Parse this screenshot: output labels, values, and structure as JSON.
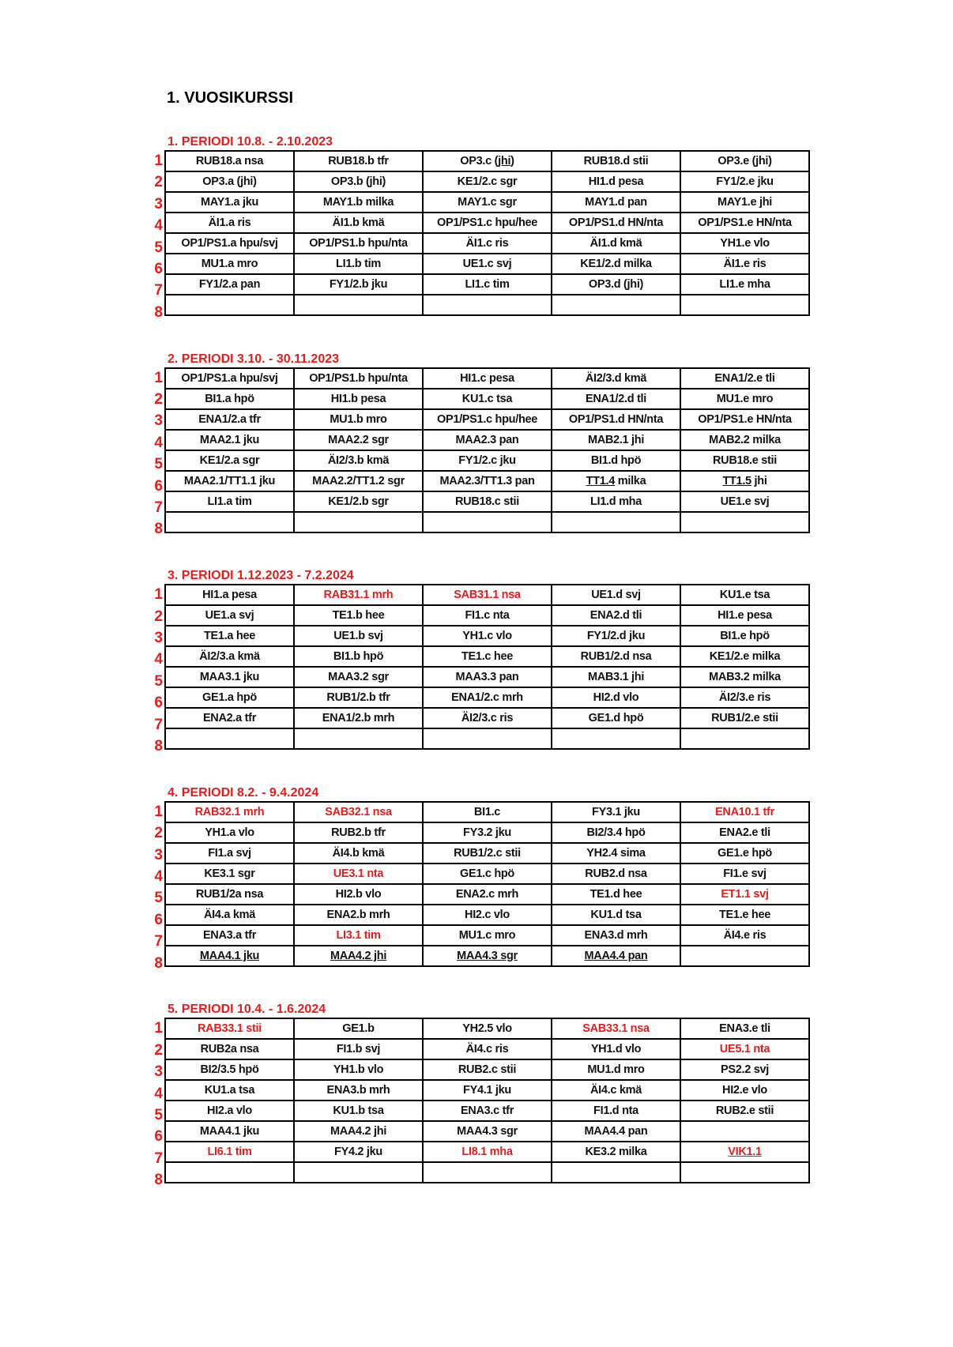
{
  "title": "1. VUOSIKURSSI",
  "accent_color": "#e31c1c",
  "row_numbers": [
    "1",
    "2",
    "3",
    "4",
    "5",
    "6",
    "7",
    "8"
  ],
  "periods": [
    {
      "heading": "1. PERIODI 10.8. - 2.10.2023",
      "rows": [
        [
          "RUB18.a nsa",
          "RUB18.b tfr",
          {
            "text": "OP3.c (jhi)",
            "underline": "jhi"
          },
          "RUB18.d stii",
          "OP3.e (jhi)"
        ],
        [
          "OP3.a (jhi)",
          "OP3.b (jhi)",
          "KE1/2.c sgr",
          "HI1.d pesa",
          "FY1/2.e jku"
        ],
        [
          "MAY1.a jku",
          "MAY1.b milka",
          "MAY1.c sgr",
          "MAY1.d pan",
          "MAY1.e jhi"
        ],
        [
          "ÄI1.a ris",
          "ÄI1.b kmä",
          "OP1/PS1.c hpu/hee",
          "OP1/PS1.d HN/nta",
          "OP1/PS1.e HN/nta"
        ],
        [
          "OP1/PS1.a hpu/svj",
          "OP1/PS1.b hpu/nta",
          "ÄI1.c ris",
          "ÄI1.d kmä",
          "YH1.e vlo"
        ],
        [
          "MU1.a mro",
          "LI1.b tim",
          "UE1.c svj",
          "KE1/2.d milka",
          "ÄI1.e ris"
        ],
        [
          "FY1/2.a pan",
          "FY1/2.b jku",
          "LI1.c tim",
          "OP3.d (jhi)",
          "LI1.e mha"
        ],
        [
          "",
          "",
          "",
          "",
          ""
        ]
      ]
    },
    {
      "heading": "2. PERIODI 3.10. - 30.11.2023",
      "rows": [
        [
          "OP1/PS1.a hpu/svj",
          "OP1/PS1.b hpu/nta",
          "HI1.c pesa",
          "ÄI2/3.d kmä",
          "ENA1/2.e tli"
        ],
        [
          "BI1.a hpö",
          "HI1.b pesa",
          "KU1.c tsa",
          "ENA1/2.d tli",
          "MU1.e mro"
        ],
        [
          "ENA1/2.a tfr",
          "MU1.b mro",
          "OP1/PS1.c hpu/hee",
          "OP1/PS1.d HN/nta",
          "OP1/PS1.e HN/nta"
        ],
        [
          "MAA2.1 jku",
          "MAA2.2 sgr",
          "MAA2.3 pan",
          "MAB2.1 jhi",
          "MAB2.2 milka"
        ],
        [
          "KE1/2.a sgr",
          "ÄI2/3.b kmä",
          "FY1/2.c jku",
          "BI1.d hpö",
          "RUB18.e stii"
        ],
        [
          "MAA2.1/TT1.1 jku",
          "MAA2.2/TT1.2 sgr",
          "MAA2.3/TT1.3 pan",
          {
            "text": "TT1.4 milka",
            "underline": "TT1.4"
          },
          {
            "text": "TT1.5 jhi",
            "underline": "TT1.5"
          }
        ],
        [
          "LI1.a tim",
          "KE1/2.b sgr",
          "RUB18.c stii",
          "LI1.d mha",
          "UE1.e svj"
        ],
        [
          "",
          "",
          "",
          "",
          ""
        ]
      ]
    },
    {
      "heading": "3. PERIODI 1.12.2023 - 7.2.2024",
      "rows": [
        [
          "HI1.a pesa",
          {
            "text": "RAB31.1 mrh",
            "red": true
          },
          {
            "text": "SAB31.1 nsa",
            "red": true
          },
          "UE1.d svj",
          "KU1.e tsa"
        ],
        [
          "UE1.a svj",
          "TE1.b hee",
          "FI1.c nta",
          "ENA2.d tli",
          "HI1.e pesa"
        ],
        [
          "TE1.a hee",
          "UE1.b svj",
          "YH1.c vlo",
          "FY1/2.d jku",
          "BI1.e hpö"
        ],
        [
          "ÄI2/3.a kmä",
          "BI1.b hpö",
          "TE1.c hee",
          "RUB1/2.d nsa",
          "KE1/2.e milka"
        ],
        [
          "MAA3.1 jku",
          "MAA3.2 sgr",
          "MAA3.3 pan",
          "MAB3.1 jhi",
          "MAB3.2 milka"
        ],
        [
          "GE1.a hpö",
          "RUB1/2.b tfr",
          "ENA1/2.c mrh",
          "HI2.d vlo",
          "ÄI2/3.e ris"
        ],
        [
          "ENA2.a tfr",
          "ENA1/2.b mrh",
          "ÄI2/3.c ris",
          "GE1.d hpö",
          "RUB1/2.e stii"
        ],
        [
          "",
          "",
          "",
          "",
          ""
        ]
      ]
    },
    {
      "heading": "4. PERIODI 8.2. - 9.4.2024",
      "rows": [
        [
          {
            "text": "RAB32.1 mrh",
            "red": true
          },
          {
            "text": "SAB32.1 nsa",
            "red": true
          },
          "BI1.c",
          "FY3.1 jku",
          {
            "text": "ENA10.1 tfr",
            "red": true
          }
        ],
        [
          "YH1.a vlo",
          "RUB2.b tfr",
          "FY3.2 jku",
          "BI2/3.4 hpö",
          "ENA2.e tli"
        ],
        [
          "FI1.a svj",
          "ÄI4.b kmä",
          "RUB1/2.c stii",
          "YH2.4 sima",
          "GE1.e hpö"
        ],
        [
          "KE3.1 sgr",
          {
            "text": "UE3.1 nta",
            "red": true
          },
          "GE1.c hpö",
          "RUB2.d nsa",
          "FI1.e svj"
        ],
        [
          "RUB1/2a nsa",
          "HI2.b vlo",
          "ENA2.c mrh",
          "TE1.d hee",
          {
            "text": "ET1.1 svj",
            "red": true
          }
        ],
        [
          "ÄI4.a kmä",
          "ENA2.b mrh",
          "HI2.c vlo",
          "KU1.d tsa",
          "TE1.e hee"
        ],
        [
          "ENA3.a tfr",
          {
            "text": "LI3.1 tim",
            "red": true
          },
          "MU1.c mro",
          "ENA3.d mrh",
          "ÄI4.e ris"
        ],
        [
          {
            "text": "MAA4.1 jku",
            "underline": "all"
          },
          {
            "text": "MAA4.2 jhi",
            "underline": "all"
          },
          {
            "text": "MAA4.3 sgr",
            "underline": "all"
          },
          {
            "text": "MAA4.4 pan",
            "underline": "all"
          },
          ""
        ]
      ]
    },
    {
      "heading": "5. PERIODI 10.4. - 1.6.2024",
      "rows": [
        [
          {
            "text": "RAB33.1 stii",
            "red": true
          },
          "GE1.b",
          "YH2.5 vlo",
          {
            "text": "SAB33.1 nsa",
            "red": true
          },
          "ENA3.e tli"
        ],
        [
          "RUB2a nsa",
          "FI1.b svj",
          "ÄI4.c ris",
          "YH1.d vlo",
          {
            "text": "UE5.1 nta",
            "red": true
          }
        ],
        [
          "BI2/3.5 hpö",
          "YH1.b vlo",
          "RUB2.c stii",
          "MU1.d mro",
          "PS2.2 svj"
        ],
        [
          "KU1.a tsa",
          "ENA3.b mrh",
          "FY4.1 jku",
          "ÄI4.c kmä",
          "HI2.e vlo"
        ],
        [
          "HI2.a vlo",
          "KU1.b tsa",
          "ENA3.c tfr",
          "FI1.d nta",
          "RUB2.e stii"
        ],
        [
          "MAA4.1 jku",
          "MAA4.2 jhi",
          "MAA4.3 sgr",
          "MAA4.4 pan",
          ""
        ],
        [
          {
            "text": "LI6.1 tim",
            "red": true
          },
          "FY4.2 jku",
          {
            "text": "LI8.1 mha",
            "red": true
          },
          "KE3.2 milka",
          {
            "text": "VIK1.1",
            "red": true,
            "underline": "all"
          }
        ],
        [
          "",
          "",
          "",
          "",
          ""
        ]
      ]
    }
  ]
}
